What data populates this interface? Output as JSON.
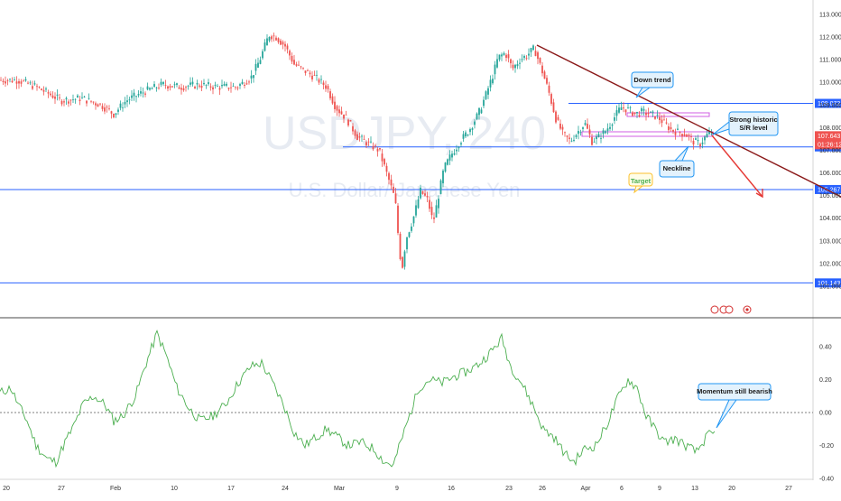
{
  "watermark": {
    "symbol": "USDJPY, 240",
    "name": "U.S. Dollar/ Japanese Yen"
  },
  "chart_data": [
    {
      "type": "candlestick",
      "title": "USDJPY, 240",
      "subtitle": "U.S. Dollar/ Japanese Yen",
      "x_tick_labels": [
        "20",
        "27",
        "Feb",
        "10",
        "17",
        "24",
        "Mar",
        "9",
        "16",
        "23",
        "26",
        "Apr",
        "6",
        "9",
        "13",
        "20",
        "27"
      ],
      "y_tick_labels": [
        "113.000",
        "112.000",
        "111.000",
        "110.000",
        "109.000",
        "108.000",
        "107.000",
        "106.000",
        "105.000",
        "104.000",
        "103.000",
        "102.000",
        "101.000"
      ],
      "ylim": [
        100.6,
        113.3
      ],
      "price_path": [
        [
          0,
          110.1
        ],
        [
          20,
          110.1
        ],
        [
          40,
          109.8
        ],
        [
          68,
          109.2
        ],
        [
          90,
          109.3
        ],
        [
          112,
          109.0
        ],
        [
          126,
          108.6
        ],
        [
          140,
          109.2
        ],
        [
          160,
          109.6
        ],
        [
          180,
          109.9
        ],
        [
          200,
          109.8
        ],
        [
          220,
          109.9
        ],
        [
          240,
          109.8
        ],
        [
          262,
          109.8
        ],
        [
          278,
          110.2
        ],
        [
          288,
          111.0
        ],
        [
          298,
          112.1
        ],
        [
          306,
          112.0
        ],
        [
          316,
          111.6
        ],
        [
          326,
          110.8
        ],
        [
          338,
          110.5
        ],
        [
          350,
          110.2
        ],
        [
          362,
          109.8
        ],
        [
          372,
          108.9
        ],
        [
          384,
          108.4
        ],
        [
          396,
          107.6
        ],
        [
          408,
          107.3
        ],
        [
          420,
          107.0
        ],
        [
          430,
          105.8
        ],
        [
          438,
          104.8
        ],
        [
          443,
          102.4
        ],
        [
          446,
          101.9
        ],
        [
          450,
          103.1
        ],
        [
          458,
          104.0
        ],
        [
          466,
          105.2
        ],
        [
          474,
          104.8
        ],
        [
          480,
          103.8
        ],
        [
          486,
          105.0
        ],
        [
          492,
          106.2
        ],
        [
          500,
          106.8
        ],
        [
          510,
          107.4
        ],
        [
          520,
          107.9
        ],
        [
          530,
          108.6
        ],
        [
          538,
          109.4
        ],
        [
          546,
          110.3
        ],
        [
          552,
          111.1
        ],
        [
          560,
          111.3
        ],
        [
          568,
          110.6
        ],
        [
          576,
          111.0
        ],
        [
          584,
          111.2
        ],
        [
          592,
          111.5
        ],
        [
          600,
          110.6
        ],
        [
          608,
          109.6
        ],
        [
          616,
          108.4
        ],
        [
          624,
          107.7
        ],
        [
          632,
          107.4
        ],
        [
          640,
          107.8
        ],
        [
          648,
          108.2
        ],
        [
          656,
          107.4
        ],
        [
          664,
          107.6
        ],
        [
          672,
          107.9
        ],
        [
          680,
          108.4
        ],
        [
          688,
          108.9
        ],
        [
          696,
          108.8
        ],
        [
          704,
          108.6
        ],
        [
          712,
          108.7
        ],
        [
          720,
          108.6
        ],
        [
          728,
          108.5
        ],
        [
          736,
          108.2
        ],
        [
          744,
          107.9
        ],
        [
          752,
          107.8
        ],
        [
          760,
          107.7
        ],
        [
          768,
          107.4
        ],
        [
          776,
          107.3
        ],
        [
          784,
          107.7
        ],
        [
          790,
          107.8
        ]
      ],
      "labels": {
        "last_price": "107.643",
        "countdown": "01:26:12",
        "down_trend": "Down trend",
        "strong_sr": "Strong historic\nS/R level",
        "neckline": "Neckline",
        "target": "Target"
      },
      "horizontal_levels": [
        {
          "value": 109.072,
          "label": "109.072",
          "color": "#2962ff"
        },
        {
          "value": 107.149,
          "label": "107.149",
          "color": "#2962ff"
        },
        {
          "value": 105.267,
          "label": "105.267",
          "color": "#2962ff"
        },
        {
          "value": 101.143,
          "label": "101.143",
          "color": "#2962ff"
        }
      ],
      "colors": {
        "up": "#26a69a",
        "down": "#ef5350",
        "trendline": "#8b1a1a",
        "projection": "#e53935",
        "level": "#2962ff",
        "sr_band": "#d05ce3"
      }
    },
    {
      "type": "line",
      "title": "",
      "label": "Momentum still bearish",
      "y_tick_labels": [
        "0.40",
        "0.20",
        "0.00",
        "-0.20",
        "-0.40"
      ],
      "ylim": [
        -0.42,
        0.5
      ],
      "zero_line": true,
      "color": "#4caf50",
      "values_path": [
        [
          0,
          0.12
        ],
        [
          12,
          0.15
        ],
        [
          20,
          0.05
        ],
        [
          30,
          -0.05
        ],
        [
          40,
          -0.2
        ],
        [
          52,
          -0.28
        ],
        [
          62,
          -0.3
        ],
        [
          72,
          -0.18
        ],
        [
          82,
          -0.08
        ],
        [
          92,
          0.05
        ],
        [
          104,
          0.1
        ],
        [
          116,
          0.05
        ],
        [
          126,
          -0.05
        ],
        [
          136,
          -0.02
        ],
        [
          150,
          0.1
        ],
        [
          162,
          0.3
        ],
        [
          174,
          0.48
        ],
        [
          184,
          0.35
        ],
        [
          196,
          0.15
        ],
        [
          210,
          0.02
        ],
        [
          222,
          -0.05
        ],
        [
          236,
          -0.02
        ],
        [
          250,
          0.05
        ],
        [
          264,
          0.18
        ],
        [
          278,
          0.28
        ],
        [
          290,
          0.3
        ],
        [
          302,
          0.18
        ],
        [
          314,
          0.05
        ],
        [
          326,
          -0.12
        ],
        [
          338,
          -0.2
        ],
        [
          350,
          -0.15
        ],
        [
          362,
          -0.1
        ],
        [
          374,
          -0.15
        ],
        [
          386,
          -0.2
        ],
        [
          400,
          -0.18
        ],
        [
          414,
          -0.22
        ],
        [
          426,
          -0.3
        ],
        [
          436,
          -0.32
        ],
        [
          444,
          -0.18
        ],
        [
          452,
          -0.05
        ],
        [
          464,
          0.15
        ],
        [
          476,
          0.2
        ],
        [
          490,
          0.18
        ],
        [
          504,
          0.22
        ],
        [
          518,
          0.25
        ],
        [
          532,
          0.3
        ],
        [
          546,
          0.38
        ],
        [
          556,
          0.45
        ],
        [
          566,
          0.28
        ],
        [
          578,
          0.18
        ],
        [
          590,
          0.05
        ],
        [
          602,
          -0.1
        ],
        [
          614,
          -0.15
        ],
        [
          626,
          -0.25
        ],
        [
          636,
          -0.3
        ],
        [
          648,
          -0.22
        ],
        [
          660,
          -0.2
        ],
        [
          672,
          -0.08
        ],
        [
          684,
          0.08
        ],
        [
          696,
          0.2
        ],
        [
          706,
          0.15
        ],
        [
          716,
          -0.02
        ],
        [
          726,
          -0.1
        ],
        [
          736,
          -0.18
        ],
        [
          748,
          -0.16
        ],
        [
          760,
          -0.2
        ],
        [
          772,
          -0.24
        ],
        [
          784,
          -0.14
        ],
        [
          792,
          -0.13
        ]
      ]
    }
  ]
}
